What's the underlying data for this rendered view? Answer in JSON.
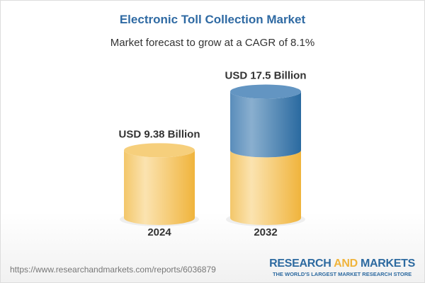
{
  "title": "Electronic Toll Collection Market",
  "subtitle": "Market forecast to grow at a CAGR of 8.1%",
  "chart_data": {
    "type": "bar",
    "style": "3d-cylinder",
    "categories": [
      "2024",
      "2032"
    ],
    "values": [
      9.38,
      17.5
    ],
    "data_labels": [
      "USD 9.38 Billion",
      "USD 17.5 Billion"
    ],
    "unit": "USD Billion",
    "colors": {
      "base": "#f3c35e",
      "growth": "#4a82b4"
    }
  },
  "footer": {
    "url": "https://www.researchandmarkets.com/reports/6036879",
    "logo_part1": "RESEARCH ",
    "logo_part2": "AND",
    "logo_part3": " MARKETS",
    "tagline": "THE WORLD'S LARGEST MARKET RESEARCH STORE"
  }
}
